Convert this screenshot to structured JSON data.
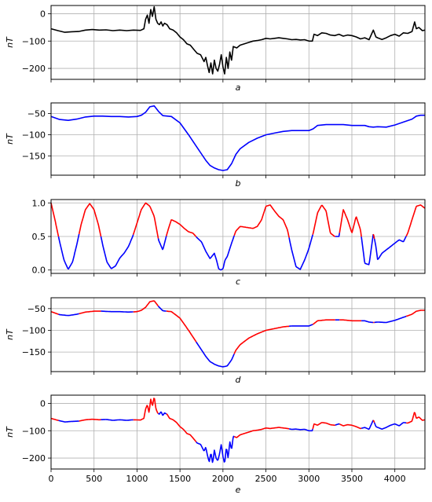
{
  "figure": {
    "x_ticks": [
      0,
      500,
      1000,
      1500,
      2000,
      2500,
      3000,
      3500,
      4000
    ],
    "x_range": [
      0,
      4350
    ],
    "colors": {
      "black": "#000000",
      "blue": "#0000ff",
      "red": "#ff0000",
      "grid": "#b0b0b0"
    }
  },
  "chart_data": [
    {
      "type": "line",
      "panel_label": "a",
      "ylabel": "nT",
      "ylim": [
        -240,
        30
      ],
      "yticks": [
        -200,
        -100,
        0
      ],
      "x_tick_labels_visible": false,
      "grid": true,
      "series": [
        {
          "color": "black",
          "x": [
            0,
            80,
            160,
            240,
            320,
            400,
            480,
            560,
            640,
            720,
            800,
            880,
            960,
            1040,
            1080,
            1100,
            1120,
            1140,
            1160,
            1180,
            1200,
            1220,
            1240,
            1260,
            1280,
            1300,
            1320,
            1350,
            1380,
            1420,
            1460,
            1500,
            1540,
            1580,
            1620,
            1660,
            1700,
            1740,
            1780,
            1800,
            1820,
            1840,
            1860,
            1880,
            1900,
            1920,
            1940,
            1960,
            1980,
            2000,
            2020,
            2040,
            2060,
            2080,
            2100,
            2120,
            2160,
            2200,
            2250,
            2300,
            2350,
            2400,
            2450,
            2500,
            2550,
            2600,
            2650,
            2700,
            2750,
            2800,
            2850,
            2900,
            2950,
            3000,
            3040,
            3060,
            3100,
            3150,
            3200,
            3250,
            3300,
            3350,
            3400,
            3450,
            3500,
            3550,
            3600,
            3650,
            3700,
            3750,
            3780,
            3800,
            3850,
            3900,
            3950,
            4000,
            4050,
            4100,
            4150,
            4200,
            4230,
            4250,
            4280,
            4320,
            4350
          ],
          "y": [
            -55,
            -62,
            -68,
            -66,
            -65,
            -60,
            -58,
            -60,
            -59,
            -62,
            -60,
            -62,
            -60,
            -61,
            -55,
            -20,
            -5,
            -35,
            15,
            -10,
            25,
            -20,
            -35,
            -40,
            -30,
            -45,
            -35,
            -40,
            -55,
            -60,
            -70,
            -85,
            -95,
            -110,
            -115,
            -130,
            -145,
            -150,
            -175,
            -160,
            -190,
            -215,
            -180,
            -220,
            -170,
            -200,
            -210,
            -185,
            -150,
            -195,
            -220,
            -160,
            -200,
            -140,
            -170,
            -120,
            -125,
            -115,
            -110,
            -105,
            -100,
            -98,
            -95,
            -90,
            -92,
            -90,
            -88,
            -90,
            -92,
            -95,
            -94,
            -96,
            -95,
            -100,
            -100,
            -75,
            -80,
            -70,
            -72,
            -78,
            -80,
            -75,
            -82,
            -78,
            -80,
            -85,
            -92,
            -88,
            -95,
            -60,
            -85,
            -88,
            -94,
            -88,
            -80,
            -75,
            -82,
            -70,
            -72,
            -65,
            -30,
            -55,
            -50,
            -62,
            -60
          ]
        }
      ]
    },
    {
      "type": "line",
      "panel_label": "b",
      "ylabel": "nT",
      "ylim": [
        -195,
        -25
      ],
      "yticks": [
        -150,
        -100,
        -50
      ],
      "x_tick_labels_visible": false,
      "grid": true,
      "series": [
        {
          "color": "blue",
          "x": [
            0,
            100,
            200,
            300,
            400,
            500,
            600,
            700,
            800,
            900,
            1000,
            1050,
            1100,
            1150,
            1200,
            1250,
            1300,
            1400,
            1500,
            1600,
            1700,
            1800,
            1850,
            1900,
            1950,
            2000,
            2050,
            2100,
            2150,
            2200,
            2300,
            2400,
            2500,
            2600,
            2700,
            2800,
            2900,
            3000,
            3050,
            3100,
            3200,
            3300,
            3400,
            3500,
            3600,
            3650,
            3700,
            3750,
            3800,
            3900,
            4000,
            4100,
            4200,
            4250,
            4300,
            4350
          ],
          "y": [
            -57,
            -64,
            -66,
            -63,
            -58,
            -56,
            -56,
            -57,
            -57,
            -58,
            -57,
            -54,
            -47,
            -34,
            -32,
            -45,
            -55,
            -57,
            -72,
            -100,
            -130,
            -160,
            -172,
            -178,
            -182,
            -184,
            -182,
            -168,
            -146,
            -133,
            -118,
            -108,
            -100,
            -96,
            -92,
            -90,
            -90,
            -90,
            -86,
            -78,
            -76,
            -76,
            -76,
            -78,
            -78,
            -78,
            -81,
            -82,
            -81,
            -82,
            -77,
            -70,
            -63,
            -56,
            -54,
            -54
          ]
        }
      ]
    },
    {
      "type": "line",
      "panel_label": "c",
      "ylabel": "",
      "ylim": [
        -0.05,
        1.05
      ],
      "yticks": [
        0.0,
        0.5,
        1.0
      ],
      "x_tick_labels_visible": false,
      "grid": true,
      "threshold": 0.5,
      "series": [
        {
          "color": "red above 0.5, blue below",
          "x": [
            0,
            50,
            100,
            150,
            200,
            250,
            300,
            350,
            400,
            450,
            500,
            550,
            600,
            650,
            700,
            750,
            800,
            850,
            900,
            950,
            1000,
            1050,
            1100,
            1150,
            1200,
            1250,
            1300,
            1350,
            1400,
            1450,
            1500,
            1550,
            1600,
            1650,
            1700,
            1750,
            1800,
            1850,
            1900,
            1925,
            1950,
            1975,
            2000,
            2025,
            2050,
            2100,
            2150,
            2200,
            2250,
            2300,
            2350,
            2400,
            2450,
            2500,
            2550,
            2600,
            2650,
            2700,
            2750,
            2800,
            2850,
            2900,
            2950,
            3000,
            3050,
            3100,
            3150,
            3200,
            3250,
            3300,
            3350,
            3400,
            3450,
            3500,
            3550,
            3600,
            3650,
            3700,
            3750,
            3780,
            3800,
            3850,
            3900,
            3950,
            4000,
            4050,
            4100,
            4150,
            4200,
            4250,
            4300,
            4350
          ],
          "y": [
            1.0,
            0.72,
            0.42,
            0.15,
            0.01,
            0.12,
            0.38,
            0.68,
            0.9,
            0.99,
            0.9,
            0.68,
            0.38,
            0.12,
            0.02,
            0.06,
            0.18,
            0.25,
            0.35,
            0.5,
            0.7,
            0.9,
            1.0,
            0.95,
            0.8,
            0.45,
            0.3,
            0.55,
            0.75,
            0.72,
            0.68,
            0.62,
            0.57,
            0.55,
            0.48,
            0.42,
            0.28,
            0.17,
            0.25,
            0.15,
            0.02,
            0.0,
            0.02,
            0.15,
            0.2,
            0.4,
            0.58,
            0.65,
            0.64,
            0.63,
            0.62,
            0.65,
            0.75,
            0.95,
            0.97,
            0.88,
            0.8,
            0.75,
            0.6,
            0.3,
            0.05,
            0.01,
            0.15,
            0.32,
            0.55,
            0.85,
            0.97,
            0.88,
            0.55,
            0.5,
            0.5,
            0.9,
            0.75,
            0.55,
            0.8,
            0.6,
            0.1,
            0.08,
            0.55,
            0.35,
            0.15,
            0.25,
            0.3,
            0.35,
            0.4,
            0.45,
            0.42,
            0.55,
            0.75,
            0.95,
            0.97,
            0.92
          ]
        }
      ]
    },
    {
      "type": "line",
      "panel_label": "d",
      "ylabel": "nT",
      "ylim": [
        -195,
        -25
      ],
      "yticks": [
        -150,
        -100,
        -50
      ],
      "x_tick_labels_visible": false,
      "grid": true,
      "series": [
        {
          "color": "red where panel c weight > 0.5, blue otherwise",
          "x": [
            0,
            100,
            200,
            300,
            400,
            500,
            600,
            700,
            800,
            900,
            1000,
            1050,
            1100,
            1150,
            1200,
            1250,
            1300,
            1400,
            1500,
            1600,
            1700,
            1800,
            1850,
            1900,
            1950,
            2000,
            2050,
            2100,
            2150,
            2200,
            2300,
            2400,
            2500,
            2600,
            2700,
            2800,
            2900,
            3000,
            3050,
            3100,
            3200,
            3300,
            3400,
            3500,
            3600,
            3650,
            3700,
            3750,
            3800,
            3900,
            4000,
            4100,
            4200,
            4250,
            4300,
            4350
          ],
          "y": [
            -57,
            -64,
            -66,
            -63,
            -58,
            -56,
            -56,
            -57,
            -57,
            -58,
            -57,
            -54,
            -47,
            -34,
            -32,
            -45,
            -55,
            -57,
            -72,
            -100,
            -130,
            -160,
            -172,
            -178,
            -182,
            -184,
            -182,
            -168,
            -146,
            -133,
            -118,
            -108,
            -100,
            -96,
            -92,
            -90,
            -90,
            -90,
            -86,
            -78,
            -76,
            -76,
            -76,
            -78,
            -78,
            -78,
            -81,
            -82,
            -81,
            -82,
            -77,
            -70,
            -63,
            -56,
            -54,
            -54
          ]
        }
      ]
    },
    {
      "type": "line",
      "panel_label": "e",
      "ylabel": "nT",
      "ylim": [
        -240,
        30
      ],
      "yticks": [
        -200,
        -100,
        0
      ],
      "x_tick_labels_visible": true,
      "grid": true,
      "series": [
        {
          "color": "red where panel c weight > 0.5, blue otherwise",
          "x": [
            0,
            80,
            160,
            240,
            320,
            400,
            480,
            560,
            640,
            720,
            800,
            880,
            960,
            1040,
            1080,
            1100,
            1120,
            1140,
            1160,
            1180,
            1200,
            1220,
            1240,
            1260,
            1280,
            1300,
            1320,
            1350,
            1380,
            1420,
            1460,
            1500,
            1540,
            1580,
            1620,
            1660,
            1700,
            1740,
            1780,
            1800,
            1820,
            1840,
            1860,
            1880,
            1900,
            1920,
            1940,
            1960,
            1980,
            2000,
            2020,
            2040,
            2060,
            2080,
            2100,
            2120,
            2160,
            2200,
            2250,
            2300,
            2350,
            2400,
            2450,
            2500,
            2550,
            2600,
            2650,
            2700,
            2750,
            2800,
            2850,
            2900,
            2950,
            3000,
            3040,
            3060,
            3100,
            3150,
            3200,
            3250,
            3300,
            3350,
            3400,
            3450,
            3500,
            3550,
            3600,
            3650,
            3700,
            3750,
            3780,
            3800,
            3850,
            3900,
            3950,
            4000,
            4050,
            4100,
            4150,
            4200,
            4230,
            4250,
            4280,
            4320,
            4350
          ],
          "y": [
            -55,
            -62,
            -68,
            -66,
            -65,
            -60,
            -58,
            -60,
            -59,
            -62,
            -60,
            -62,
            -60,
            -61,
            -55,
            -20,
            -5,
            -35,
            15,
            -10,
            25,
            -20,
            -35,
            -40,
            -30,
            -45,
            -35,
            -40,
            -55,
            -60,
            -70,
            -85,
            -95,
            -110,
            -115,
            -130,
            -145,
            -150,
            -175,
            -160,
            -190,
            -215,
            -180,
            -220,
            -170,
            -200,
            -210,
            -185,
            -150,
            -195,
            -220,
            -160,
            -200,
            -140,
            -170,
            -120,
            -125,
            -115,
            -110,
            -105,
            -100,
            -98,
            -95,
            -90,
            -92,
            -90,
            -88,
            -90,
            -92,
            -95,
            -94,
            -96,
            -95,
            -100,
            -100,
            -75,
            -80,
            -70,
            -72,
            -78,
            -80,
            -75,
            -82,
            -78,
            -80,
            -85,
            -92,
            -88,
            -95,
            -60,
            -85,
            -88,
            -94,
            -88,
            -80,
            -75,
            -82,
            -70,
            -72,
            -65,
            -30,
            -55,
            -50,
            -62,
            -60
          ]
        }
      ]
    }
  ]
}
